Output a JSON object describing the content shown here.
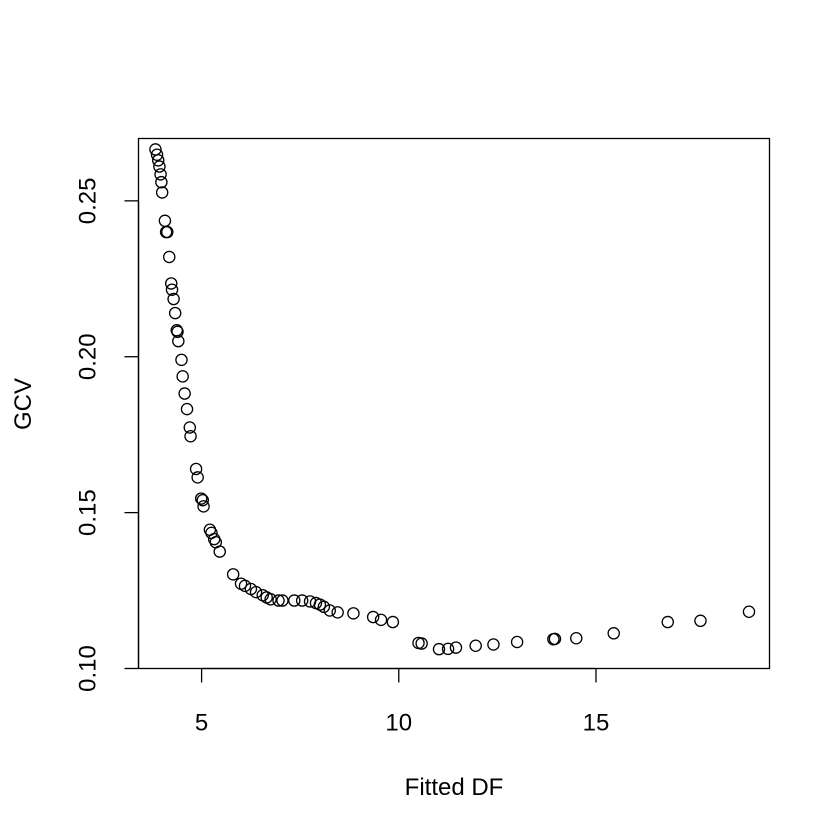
{
  "chart_data": {
    "type": "scatter",
    "title": "",
    "xlabel": "Fitted DF",
    "ylabel": "GCV",
    "xlim": [
      3.4,
      19.4
    ],
    "ylim": [
      0.1,
      0.27
    ],
    "x_ticks": [
      5,
      10,
      15
    ],
    "x_tick_labels": [
      "5",
      "10",
      "15"
    ],
    "y_ticks": [
      0.1,
      0.15,
      0.2,
      0.25
    ],
    "y_tick_labels": [
      "0.10",
      "0.15",
      "0.20",
      "0.25"
    ],
    "grid": false,
    "marker": "open-circle",
    "points": [
      [
        3.83,
        0.2665
      ],
      [
        3.87,
        0.2648
      ],
      [
        3.9,
        0.263
      ],
      [
        3.93,
        0.261
      ],
      [
        3.96,
        0.2585
      ],
      [
        3.98,
        0.256
      ],
      [
        4.0,
        0.2527
      ],
      [
        4.07,
        0.2436
      ],
      [
        4.1,
        0.24
      ],
      [
        4.13,
        0.24
      ],
      [
        4.18,
        0.232
      ],
      [
        4.23,
        0.2235
      ],
      [
        4.25,
        0.2215
      ],
      [
        4.29,
        0.2185
      ],
      [
        4.33,
        0.214
      ],
      [
        4.37,
        0.2085
      ],
      [
        4.39,
        0.208
      ],
      [
        4.41,
        0.205
      ],
      [
        4.49,
        0.199
      ],
      [
        4.52,
        0.1937
      ],
      [
        4.57,
        0.1882
      ],
      [
        4.63,
        0.1832
      ],
      [
        4.7,
        0.1773
      ],
      [
        4.72,
        0.1745
      ],
      [
        4.86,
        0.164
      ],
      [
        4.9,
        0.1613
      ],
      [
        4.99,
        0.1545
      ],
      [
        5.03,
        0.154
      ],
      [
        5.05,
        0.152
      ],
      [
        5.21,
        0.1445
      ],
      [
        5.25,
        0.1435
      ],
      [
        5.32,
        0.1415
      ],
      [
        5.36,
        0.1405
      ],
      [
        5.46,
        0.1375
      ],
      [
        5.8,
        0.1302
      ],
      [
        6.0,
        0.1272
      ],
      [
        6.1,
        0.1265
      ],
      [
        6.25,
        0.1255
      ],
      [
        6.38,
        0.1245
      ],
      [
        6.55,
        0.1235
      ],
      [
        6.65,
        0.1228
      ],
      [
        6.75,
        0.1222
      ],
      [
        6.95,
        0.1218
      ],
      [
        7.05,
        0.1218
      ],
      [
        7.35,
        0.1218
      ],
      [
        7.55,
        0.1218
      ],
      [
        7.75,
        0.1215
      ],
      [
        7.9,
        0.121
      ],
      [
        8.0,
        0.1205
      ],
      [
        8.1,
        0.1198
      ],
      [
        8.25,
        0.1186
      ],
      [
        8.45,
        0.118
      ],
      [
        8.85,
        0.1177
      ],
      [
        9.35,
        0.1165
      ],
      [
        9.55,
        0.1156
      ],
      [
        9.85,
        0.1149
      ],
      [
        10.5,
        0.1082
      ],
      [
        10.58,
        0.108
      ],
      [
        11.02,
        0.1062
      ],
      [
        11.25,
        0.1063
      ],
      [
        11.45,
        0.1067
      ],
      [
        11.95,
        0.1073
      ],
      [
        12.4,
        0.1077
      ],
      [
        13.0,
        0.1085
      ],
      [
        13.92,
        0.1094
      ],
      [
        13.96,
        0.1095
      ],
      [
        14.5,
        0.1097
      ],
      [
        15.45,
        0.1113
      ],
      [
        16.82,
        0.1149
      ],
      [
        17.65,
        0.1153
      ],
      [
        18.88,
        0.1182
      ]
    ]
  }
}
